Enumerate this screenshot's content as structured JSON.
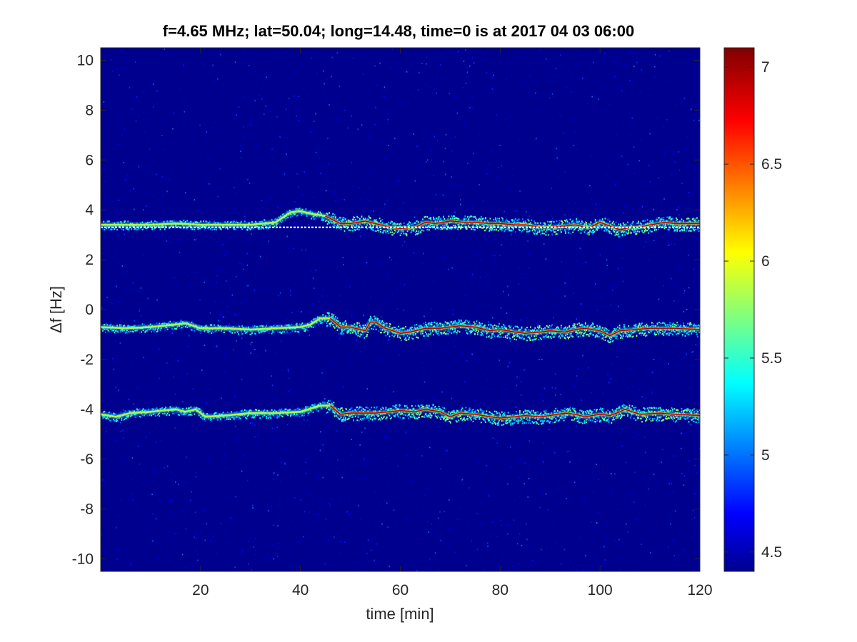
{
  "chart_data": {
    "type": "heatmap",
    "title": "f=4.65 MHz;  lat=50.04; long=14.48, time=0 is at 2017 04 03 06:00",
    "xlabel": "time [min]",
    "ylabel": "Δf [Hz]",
    "xlim": [
      0,
      120
    ],
    "ylim": [
      -10.5,
      10.5
    ],
    "xticks": [
      20,
      40,
      60,
      80,
      100,
      120
    ],
    "xtick_labels": [
      "20",
      "40",
      "60",
      "80",
      "100",
      "120"
    ],
    "yticks": [
      10,
      8,
      6,
      4,
      2,
      0,
      -2,
      -4,
      -6,
      -8,
      -10
    ],
    "ytick_labels": [
      "10",
      "8",
      "6",
      "4",
      "2",
      "0",
      "-2",
      "-4",
      "-6",
      "-8",
      "-10"
    ],
    "colorbar": {
      "colormap": "jet",
      "range": [
        4.4,
        7.1
      ],
      "ticks": [
        4.5,
        5,
        5.5,
        6,
        6.5,
        7
      ],
      "tick_labels": [
        "4.5",
        "5",
        "5.5",
        "6",
        "6.5",
        "7"
      ]
    },
    "background_value": 4.45,
    "reference_line": {
      "y": 3.3,
      "color": "#ffffff"
    },
    "traces": [
      {
        "name_hint": "upper",
        "points": [
          [
            0,
            3.4
          ],
          [
            5,
            3.4
          ],
          [
            10,
            3.4
          ],
          [
            15,
            3.45
          ],
          [
            20,
            3.4
          ],
          [
            25,
            3.4
          ],
          [
            30,
            3.4
          ],
          [
            35,
            3.5
          ],
          [
            38,
            3.9
          ],
          [
            40,
            3.95
          ],
          [
            42,
            3.85
          ],
          [
            45,
            3.75
          ],
          [
            48,
            3.45
          ],
          [
            50,
            3.45
          ],
          [
            53,
            3.55
          ],
          [
            55,
            3.45
          ],
          [
            58,
            3.3
          ],
          [
            60,
            3.25
          ],
          [
            63,
            3.3
          ],
          [
            65,
            3.5
          ],
          [
            67,
            3.45
          ],
          [
            70,
            3.55
          ],
          [
            73,
            3.5
          ],
          [
            75,
            3.5
          ],
          [
            78,
            3.45
          ],
          [
            80,
            3.45
          ],
          [
            83,
            3.4
          ],
          [
            85,
            3.4
          ],
          [
            88,
            3.3
          ],
          [
            90,
            3.3
          ],
          [
            93,
            3.35
          ],
          [
            95,
            3.4
          ],
          [
            97,
            3.3
          ],
          [
            98,
            3.3
          ],
          [
            100,
            3.5
          ],
          [
            102,
            3.35
          ],
          [
            104,
            3.2
          ],
          [
            106,
            3.3
          ],
          [
            108,
            3.3
          ],
          [
            110,
            3.4
          ],
          [
            113,
            3.5
          ],
          [
            115,
            3.45
          ],
          [
            118,
            3.45
          ],
          [
            120,
            3.45
          ]
        ],
        "strong_from": 45
      },
      {
        "name_hint": "middle",
        "points": [
          [
            0,
            -0.7
          ],
          [
            5,
            -0.75
          ],
          [
            10,
            -0.7
          ],
          [
            15,
            -0.6
          ],
          [
            17,
            -0.55
          ],
          [
            20,
            -0.75
          ],
          [
            25,
            -0.75
          ],
          [
            30,
            -0.8
          ],
          [
            35,
            -0.75
          ],
          [
            40,
            -0.7
          ],
          [
            42,
            -0.6
          ],
          [
            44,
            -0.35
          ],
          [
            46,
            -0.35
          ],
          [
            48,
            -0.7
          ],
          [
            50,
            -0.7
          ],
          [
            53,
            -0.85
          ],
          [
            54,
            -0.5
          ],
          [
            55,
            -0.5
          ],
          [
            57,
            -0.75
          ],
          [
            60,
            -0.95
          ],
          [
            62,
            -0.9
          ],
          [
            65,
            -0.75
          ],
          [
            68,
            -0.75
          ],
          [
            70,
            -0.7
          ],
          [
            72,
            -0.65
          ],
          [
            75,
            -0.7
          ],
          [
            78,
            -0.85
          ],
          [
            80,
            -0.8
          ],
          [
            83,
            -0.9
          ],
          [
            85,
            -0.95
          ],
          [
            88,
            -0.9
          ],
          [
            90,
            -0.85
          ],
          [
            93,
            -0.9
          ],
          [
            95,
            -0.8
          ],
          [
            97,
            -0.75
          ],
          [
            100,
            -0.85
          ],
          [
            102,
            -1.05
          ],
          [
            104,
            -0.85
          ],
          [
            107,
            -0.8
          ],
          [
            110,
            -0.75
          ],
          [
            115,
            -0.75
          ],
          [
            120,
            -0.8
          ]
        ],
        "strong_from": 45
      },
      {
        "name_hint": "lower",
        "points": [
          [
            0,
            -4.2
          ],
          [
            3,
            -4.3
          ],
          [
            6,
            -4.15
          ],
          [
            10,
            -4.1
          ],
          [
            15,
            -4.0
          ],
          [
            17,
            -4.1
          ],
          [
            19,
            -4.0
          ],
          [
            21,
            -4.3
          ],
          [
            25,
            -4.25
          ],
          [
            30,
            -4.15
          ],
          [
            35,
            -4.15
          ],
          [
            40,
            -4.1
          ],
          [
            44,
            -3.85
          ],
          [
            46,
            -3.85
          ],
          [
            48,
            -4.2
          ],
          [
            50,
            -4.15
          ],
          [
            55,
            -4.15
          ],
          [
            60,
            -4.05
          ],
          [
            63,
            -4.1
          ],
          [
            65,
            -4.0
          ],
          [
            68,
            -4.1
          ],
          [
            70,
            -4.3
          ],
          [
            72,
            -4.15
          ],
          [
            75,
            -4.2
          ],
          [
            78,
            -4.3
          ],
          [
            80,
            -4.35
          ],
          [
            83,
            -4.3
          ],
          [
            85,
            -4.25
          ],
          [
            88,
            -4.3
          ],
          [
            90,
            -4.25
          ],
          [
            93,
            -4.15
          ],
          [
            95,
            -4.2
          ],
          [
            97,
            -4.3
          ],
          [
            100,
            -4.2
          ],
          [
            102,
            -4.25
          ],
          [
            104,
            -4.1
          ],
          [
            105,
            -4.0
          ],
          [
            108,
            -4.2
          ],
          [
            112,
            -4.15
          ],
          [
            115,
            -4.2
          ],
          [
            120,
            -4.25
          ]
        ],
        "strong_from": 45
      }
    ]
  }
}
